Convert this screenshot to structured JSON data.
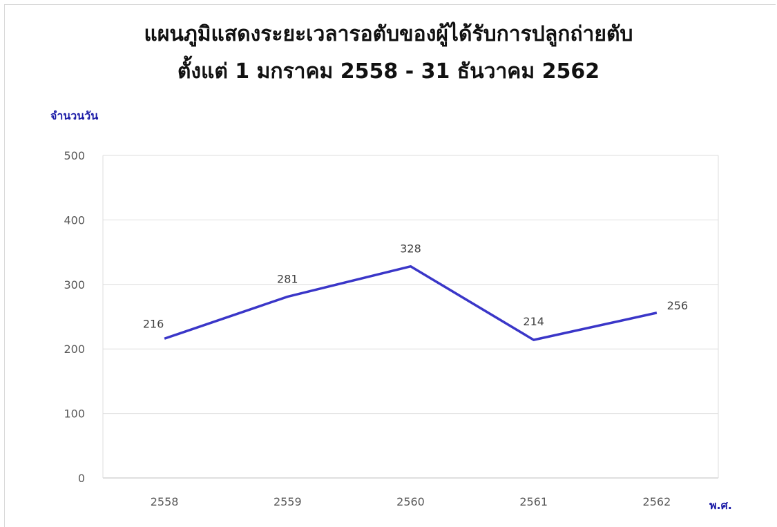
{
  "chart_data": {
    "type": "line",
    "title": "แผนภูมิแสดงระยะเวลารอตับของผู้ได้รับการปลูกถ่ายตับ",
    "subtitle": "ตั้งแต่ 1 มกราคม 2558 - 31 ธันวาคม 2562",
    "ylabel": "จำนวนวัน",
    "xlabel": "พ.ศ.",
    "categories": [
      "2558",
      "2559",
      "2560",
      "2561",
      "2562"
    ],
    "values": [
      216,
      281,
      328,
      214,
      256
    ],
    "ylim": [
      0,
      500
    ],
    "yticks": [
      0,
      100,
      200,
      300,
      400,
      500
    ],
    "grid": true,
    "legend": "none",
    "line_color": "#3a36c8"
  }
}
